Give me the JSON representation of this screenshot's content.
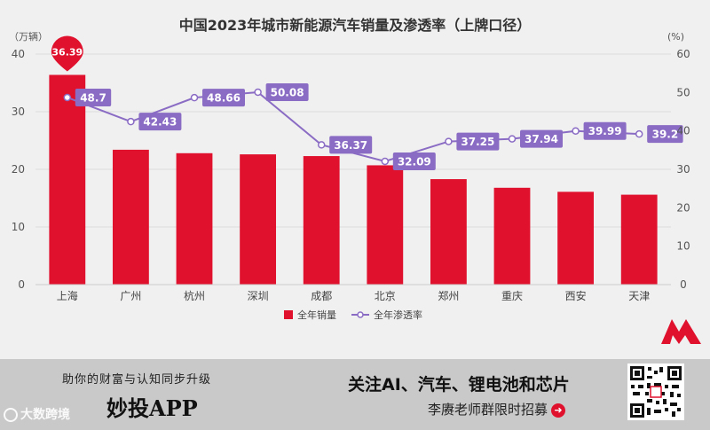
{
  "chart_data": {
    "type": "bar",
    "title": "中国2023年城市新能源汽车销量及渗透率（上牌口径）",
    "left_axis_unit": "（万辆）",
    "right_axis_unit": "(%)",
    "categories": [
      "上海",
      "广州",
      "杭州",
      "深圳",
      "成都",
      "北京",
      "郑州",
      "重庆",
      "西安",
      "天津"
    ],
    "series": [
      {
        "name": "全年销量",
        "type": "bar",
        "axis": "left",
        "color": "#e0112d",
        "values": [
          36.39,
          23.4,
          22.8,
          22.6,
          22.3,
          20.7,
          18.3,
          16.8,
          16.1,
          15.6
        ]
      },
      {
        "name": "全年渗透率",
        "type": "line",
        "axis": "right",
        "color": "#8a6cc4",
        "values": [
          48.7,
          42.43,
          48.66,
          50.08,
          36.37,
          32.09,
          37.25,
          37.94,
          39.99,
          39.2
        ]
      }
    ],
    "left_ylim": [
      0,
      40
    ],
    "left_ticks": [
      0,
      10,
      20,
      30,
      40
    ],
    "right_ylim": [
      0,
      60
    ],
    "right_ticks": [
      0,
      10,
      20,
      30,
      40,
      50,
      60
    ],
    "highlight_bar_label": "36.39",
    "legend": [
      "全年销量",
      "全年渗透率"
    ]
  },
  "footer": {
    "slogan": "助你的财富与认知同步升级",
    "app_name": "妙投APP",
    "topics": "关注AI、汽车、锂电池和芯片",
    "recruit": "李赓老师群限时招募",
    "watermark": "大数跨境",
    "arrow": "➜"
  }
}
